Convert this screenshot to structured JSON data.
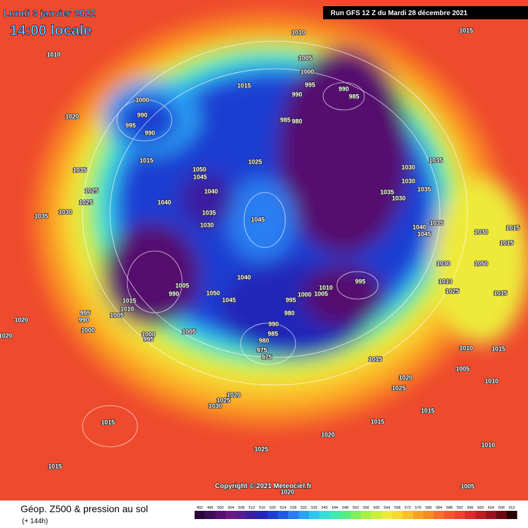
{
  "header": {
    "date": "Lundi 3 janvier 2022",
    "time": "14:00 locale",
    "run": "Run GFS 12 Z du Mardi 28 décembre 2021"
  },
  "copyright": "Copyright © 2021 Meteociel.fr",
  "legend": {
    "title": "Géop. Z500 & pression au sol",
    "subtitle": "(+ 144h)",
    "labels": [
      492,
      496,
      500,
      504,
      508,
      512,
      516,
      520,
      524,
      528,
      532,
      536,
      540,
      544,
      548,
      552,
      556,
      560,
      564,
      568,
      572,
      576,
      580,
      584,
      588,
      592,
      596,
      600,
      604,
      608,
      612
    ],
    "colors": [
      "#2a0a3a",
      "#3d0f55",
      "#55106e",
      "#6b1a85",
      "#561e8f",
      "#3a1fa0",
      "#2427b8",
      "#1f3dd1",
      "#1f5ae6",
      "#2a7ef2",
      "#2aa2f5",
      "#2ec6f0",
      "#35dfd8",
      "#3fe9b0",
      "#55ee80",
      "#7ef05a",
      "#a8f04a",
      "#ccee40",
      "#eeea3a",
      "#f8d830",
      "#fbbf2a",
      "#fba226",
      "#f98a24",
      "#f77026",
      "#f4552a",
      "#f0402e",
      "#dc2c2c",
      "#bd1f24",
      "#98141c",
      "#6c0c12",
      "#2a0404"
    ]
  },
  "isobars": [
    "1010",
    "1015",
    "1010",
    "1005",
    "1000",
    "995",
    "1015",
    "990",
    "990",
    "985",
    "1000",
    "990",
    "995",
    "990",
    "1020",
    "985",
    "980",
    "1015",
    "1050",
    "1045",
    "1025",
    "1030",
    "1035",
    "1035",
    "1040",
    "1035",
    "1030",
    "1035",
    "1030",
    "1025",
    "1025",
    "1040",
    "1035",
    "1030",
    "1035",
    "1045",
    "1030",
    "1040",
    "1035",
    "1045",
    "1030",
    "1015",
    "1015",
    "1030",
    "1050",
    "1040",
    "1013",
    "1010",
    "1005",
    "995",
    "1005",
    "990",
    "1050",
    "1045",
    "1000",
    "995",
    "1025",
    "1015",
    "1015",
    "1010",
    "980",
    "990",
    "995",
    "990",
    "1005",
    "1020",
    "985",
    "980",
    "975",
    "975",
    "1000",
    "1005",
    "1000",
    "995",
    "1020",
    "1010",
    "1015",
    "1015",
    "1005",
    "1020",
    "1010",
    "1025",
    "1020",
    "1025",
    "1030",
    "1015",
    "1015",
    "1015",
    "1020",
    "1025",
    "1010",
    "1015",
    "1005",
    "1020"
  ]
}
